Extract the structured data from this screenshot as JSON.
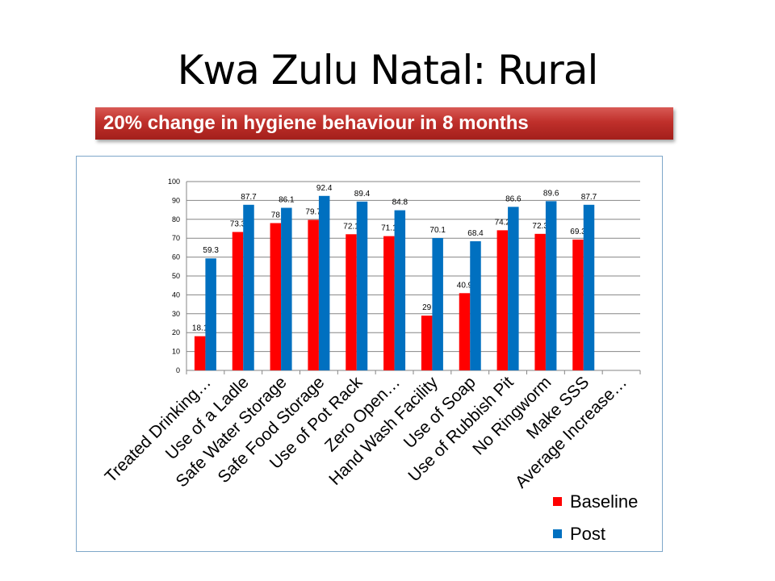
{
  "slide": {
    "title": "Kwa Zulu Natal: Rural",
    "banner": "20% change in hygiene behaviour in 8 months"
  },
  "colors": {
    "baseline": "#ff0000",
    "post": "#0070c0",
    "banner": "#c0302b",
    "grid": "#868686"
  },
  "chart_data": {
    "type": "bar",
    "categories": [
      "Treated Drinking…",
      "Use of a Ladle",
      "Safe Water Storage",
      "Safe Food Storage",
      "Use of Pot Rack",
      "Zero Open…",
      "Hand Wash Facility",
      "Use of Soap",
      "Use of Rubbish Pit",
      "No Ringworm",
      "Make SSS",
      "Average Increase…"
    ],
    "series": [
      {
        "name": "Baseline",
        "values": [
          18.1,
          73.3,
          78,
          79.7,
          72.1,
          71.1,
          29,
          40.9,
          74.2,
          72.3,
          69.3,
          null
        ]
      },
      {
        "name": "Post",
        "values": [
          59.3,
          87.7,
          86.1,
          92.4,
          89.4,
          84.8,
          70.1,
          68.4,
          86.6,
          89.6,
          87.7,
          null
        ]
      }
    ],
    "ylim": [
      0,
      100
    ],
    "yticks": [
      0,
      10,
      20,
      30,
      40,
      50,
      60,
      70,
      80,
      90,
      100
    ],
    "grid": true,
    "legend": "bottom-right"
  }
}
